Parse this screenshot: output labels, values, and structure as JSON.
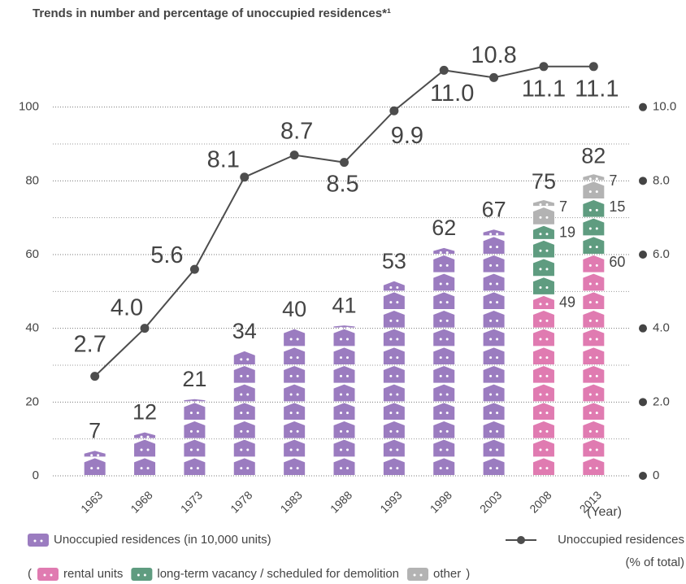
{
  "chart_data": {
    "type": "pictogram_bar_line",
    "title": "Trends in number and percentage of unoccupied residences*¹",
    "xlabel": "(Year)",
    "categories": [
      "1963",
      "1968",
      "1973",
      "1978",
      "1983",
      "1988",
      "1993",
      "1998",
      "2003",
      "2008",
      "2013"
    ],
    "series": [
      {
        "name": "Unoccupied residences (in 10,000 units)",
        "color": "#9b7cc0",
        "values": [
          7,
          12,
          21,
          34,
          40,
          41,
          53,
          62,
          67,
          75,
          82
        ]
      },
      {
        "name": "rental units",
        "color": "#e07bb1",
        "values": [
          null,
          null,
          null,
          null,
          null,
          null,
          null,
          null,
          null,
          49,
          60
        ]
      },
      {
        "name": "long-term vacancy / scheduled for demolition",
        "color": "#5f9c80",
        "values": [
          null,
          null,
          null,
          null,
          null,
          null,
          null,
          null,
          null,
          19,
          15
        ]
      },
      {
        "name": "other",
        "color": "#b3b3b3",
        "values": [
          null,
          null,
          null,
          null,
          null,
          null,
          null,
          null,
          null,
          7,
          7
        ]
      },
      {
        "name": "Unoccupied residences",
        "name_note": "(% of total)",
        "color": "#4d4d4d",
        "axis": "y2",
        "values": [
          2.7,
          4.0,
          5.6,
          8.1,
          8.7,
          8.5,
          9.9,
          11.0,
          10.8,
          11.1,
          11.1
        ],
        "value_labels": [
          "2.7",
          "4.0",
          "5.6",
          "8.1",
          "8.7",
          "8.5",
          "9.9",
          "11.0",
          "10.8",
          "11.1",
          "11.1"
        ]
      }
    ],
    "legend_open": "(",
    "legend_close": ")",
    "ylim": [
      0,
      120
    ],
    "yticks": [
      0,
      20,
      40,
      60,
      80,
      100
    ],
    "minor_yticks": [
      10,
      30,
      50,
      70,
      90
    ],
    "y2lim": [
      0,
      12
    ],
    "y2ticks": [
      0,
      {
        "value": 2,
        "label": "2.0"
      },
      {
        "value": 4,
        "label": "4.0"
      },
      {
        "value": 6,
        "label": "6.0"
      },
      {
        "value": 8,
        "label": "8.0"
      },
      {
        "value": 10,
        "label": "10.0"
      }
    ],
    "grid": true
  }
}
